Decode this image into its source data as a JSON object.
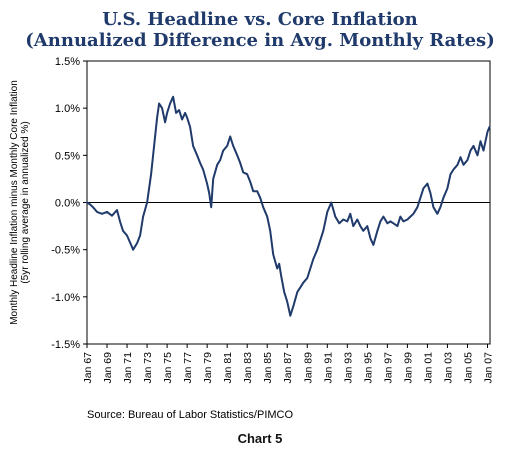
{
  "title_line1": "U.S. Headline vs. Core Inflation",
  "title_line2": "(Annualized Difference in Avg. Monthly Rates)",
  "source": "Source: Bureau of Labor Statistics/PIMCO",
  "chart_label": "Chart 5",
  "colors": {
    "title": "#1f3a6b",
    "line": "#1f3a6b",
    "axis": "#000000"
  },
  "chart_data": {
    "type": "line",
    "title": "U.S. Headline vs. Core Inflation (Annualized Difference in Avg. Monthly Rates)",
    "xlabel": "",
    "ylabel_lines": [
      "Monthly Headline Inflation minus Monthly Core Inflation",
      "(5yr rolling average in annualized %)"
    ],
    "ylim": [
      -1.5,
      1.5
    ],
    "xlim": [
      1967.0,
      2007.25
    ],
    "y_ticks": [
      1.5,
      1.0,
      0.5,
      0.0,
      -0.5,
      -1.0,
      -1.5
    ],
    "y_tick_labels": [
      "1.5%",
      "1.0%",
      "0.5%",
      "0.0%",
      "-0.5%",
      "-1.0%",
      "-1.5%"
    ],
    "x_tick_labels": [
      "Jan 67",
      "Jan 69",
      "Jan 71",
      "Jan 73",
      "Jan 75",
      "Jan 77",
      "Jan 79",
      "Jan 81",
      "Jan 83",
      "Jan 85",
      "Jan 87",
      "Jan 89",
      "Jan 91",
      "Jan 93",
      "Jan 95",
      "Jan 97",
      "Jan 99",
      "Jan 01",
      "Jan 03",
      "Jan 05",
      "Jan 07"
    ],
    "x_tick_years": [
      1967,
      1969,
      1971,
      1973,
      1975,
      1977,
      1979,
      1981,
      1983,
      1985,
      1987,
      1989,
      1991,
      1993,
      1995,
      1997,
      1999,
      2001,
      2003,
      2005,
      2007
    ],
    "zero_line": true,
    "grid": false,
    "legend": "none",
    "series": [
      {
        "x": [
          1967.0,
          1967.3,
          1967.6,
          1968.0,
          1968.5,
          1969.0,
          1969.5,
          1970.0,
          1970.3,
          1970.6,
          1971.0,
          1971.4,
          1971.6,
          1972.0,
          1972.3,
          1972.6,
          1973.0,
          1973.4,
          1973.7,
          1974.0,
          1974.2,
          1974.5,
          1974.8,
          1975.0,
          1975.3,
          1975.6,
          1975.9,
          1976.2,
          1976.5,
          1976.8,
          1977.0,
          1977.3,
          1977.6,
          1978.0,
          1978.3,
          1978.6,
          1979.0,
          1979.2,
          1979.4,
          1979.6,
          1980.0,
          1980.3,
          1980.6,
          1981.0,
          1981.3,
          1981.6,
          1982.0,
          1982.3,
          1982.6,
          1983.0,
          1983.3,
          1983.6,
          1984.0,
          1984.3,
          1984.6,
          1985.0,
          1985.3,
          1985.6,
          1986.0,
          1986.2,
          1986.4,
          1986.7,
          1987.0,
          1987.3,
          1987.6,
          1988.0,
          1988.3,
          1988.6,
          1989.0,
          1989.3,
          1989.6,
          1990.0,
          1990.3,
          1990.6,
          1991.0,
          1991.4,
          1991.8,
          1992.2,
          1992.6,
          1993.0,
          1993.3,
          1993.6,
          1994.0,
          1994.3,
          1994.6,
          1995.0,
          1995.3,
          1995.6,
          1996.0,
          1996.3,
          1996.6,
          1997.0,
          1997.3,
          1997.6,
          1998.0,
          1998.3,
          1998.6,
          1999.0,
          1999.3,
          1999.6,
          2000.0,
          2000.3,
          2000.6,
          2001.0,
          2001.3,
          2001.6,
          2002.0,
          2002.3,
          2002.6,
          2003.0,
          2003.3,
          2003.6,
          2004.0,
          2004.3,
          2004.6,
          2005.0,
          2005.3,
          2005.6,
          2006.0,
          2006.3,
          2006.6,
          2007.0,
          2007.2
        ],
        "y": [
          0.0,
          -0.02,
          -0.05,
          -0.1,
          -0.12,
          -0.1,
          -0.14,
          -0.08,
          -0.2,
          -0.3,
          -0.35,
          -0.45,
          -0.5,
          -0.43,
          -0.35,
          -0.15,
          0.0,
          0.3,
          0.6,
          0.9,
          1.05,
          1.0,
          0.85,
          0.95,
          1.05,
          1.12,
          0.95,
          0.98,
          0.88,
          0.95,
          0.9,
          0.8,
          0.6,
          0.5,
          0.42,
          0.35,
          0.2,
          0.1,
          -0.05,
          0.25,
          0.4,
          0.45,
          0.55,
          0.6,
          0.7,
          0.6,
          0.5,
          0.42,
          0.32,
          0.3,
          0.22,
          0.12,
          0.12,
          0.05,
          -0.05,
          -0.15,
          -0.3,
          -0.55,
          -0.7,
          -0.65,
          -0.78,
          -0.95,
          -1.05,
          -1.2,
          -1.1,
          -0.95,
          -0.9,
          -0.85,
          -0.8,
          -0.7,
          -0.6,
          -0.5,
          -0.4,
          -0.3,
          -0.1,
          0.0,
          -0.15,
          -0.22,
          -0.18,
          -0.2,
          -0.12,
          -0.25,
          -0.18,
          -0.25,
          -0.3,
          -0.25,
          -0.38,
          -0.45,
          -0.3,
          -0.2,
          -0.15,
          -0.22,
          -0.2,
          -0.22,
          -0.25,
          -0.15,
          -0.2,
          -0.18,
          -0.15,
          -0.12,
          -0.05,
          0.05,
          0.15,
          0.2,
          0.1,
          -0.05,
          -0.12,
          -0.05,
          0.05,
          0.15,
          0.3,
          0.35,
          0.4,
          0.48,
          0.4,
          0.45,
          0.55,
          0.6,
          0.5,
          0.65,
          0.55,
          0.75,
          0.8
        ]
      }
    ]
  }
}
